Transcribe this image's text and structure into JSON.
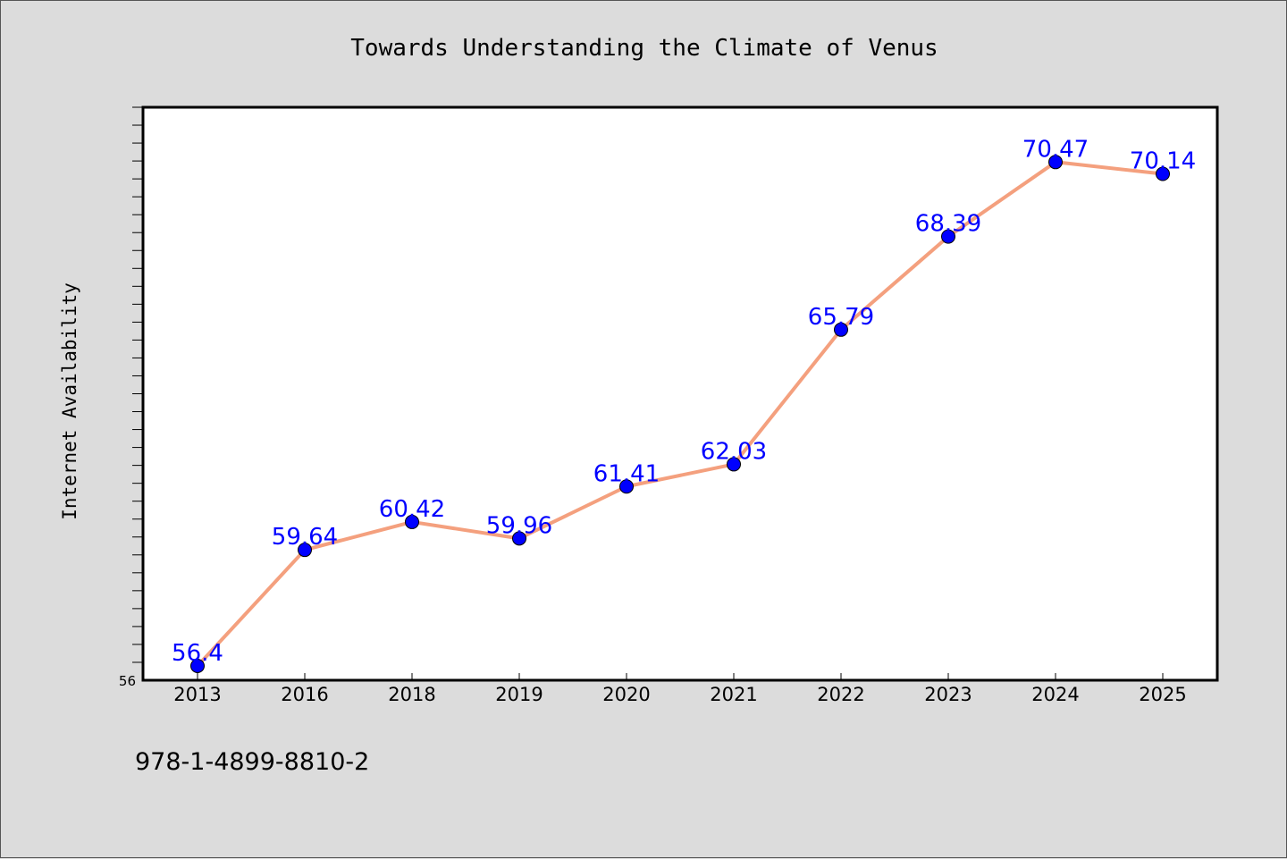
{
  "chart_data": {
    "type": "line",
    "title": "Towards Understanding the Climate of Venus",
    "xlabel": "",
    "ylabel": "Internet Availability",
    "categories": [
      "2013",
      "2016",
      "2018",
      "2019",
      "2020",
      "2021",
      "2022",
      "2023",
      "2024",
      "2025"
    ],
    "values": [
      56.4,
      59.64,
      60.42,
      59.96,
      61.41,
      62.03,
      65.79,
      68.39,
      70.47,
      70.14
    ],
    "data_labels": [
      "56.4",
      "59.64",
      "60.42",
      "59.96",
      "61.41",
      "62.03",
      "65.79",
      "68.39",
      "70.47",
      "70.14"
    ],
    "ylim": [
      56,
      72
    ],
    "ytick_labels": [
      "56"
    ],
    "grid": false,
    "line_color": "#f4a07e",
    "marker_color": "#0000ff",
    "label_color": "#0000ff"
  },
  "footer": {
    "isbn": "978-1-4899-8810-2"
  }
}
